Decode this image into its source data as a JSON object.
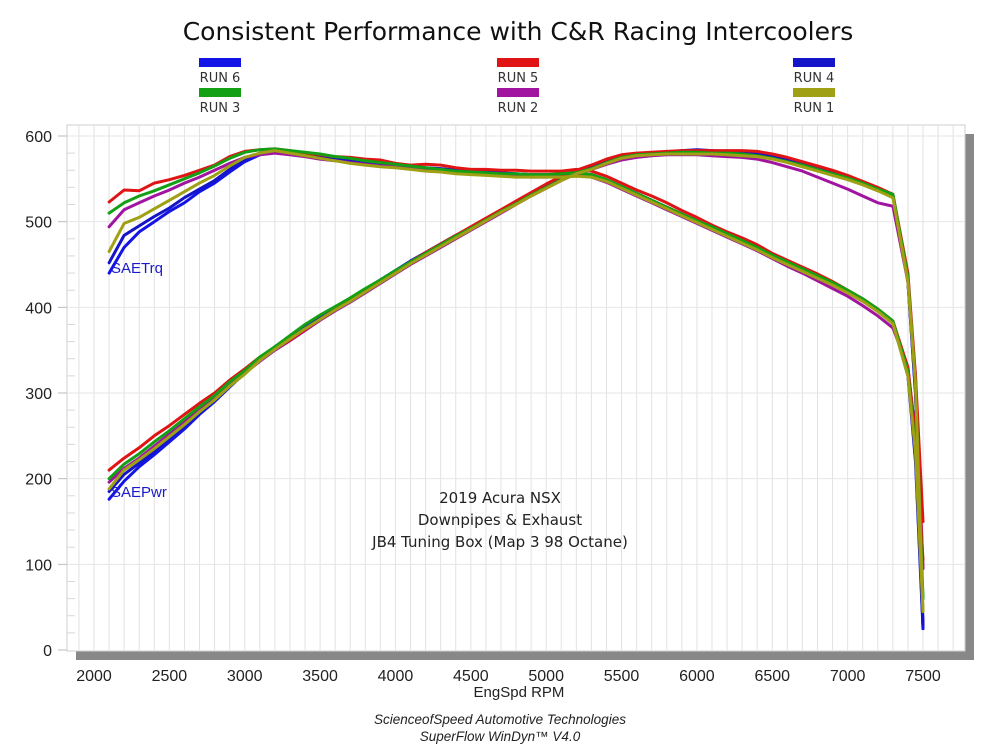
{
  "chart_data": {
    "type": "line",
    "title": "Consistent Performance with C&R Racing Intercoolers",
    "xlabel": "EngSpd RPM",
    "ylabel": "",
    "xlim": [
      1850,
      7800
    ],
    "ylim": [
      0,
      610
    ],
    "x_ticks": [
      2000,
      2500,
      3000,
      3500,
      4000,
      4500,
      5000,
      5500,
      6000,
      6500,
      7000,
      7500
    ],
    "y_ticks": [
      0,
      100,
      200,
      300,
      400,
      500,
      600
    ],
    "grid": true,
    "legend_placement": "top",
    "legend": [
      {
        "name": "RUN 6",
        "color": "#1414e6"
      },
      {
        "name": "RUN 5",
        "color": "#e01414"
      },
      {
        "name": "RUN 4",
        "color": "#1414c8"
      },
      {
        "name": "RUN 3",
        "color": "#14a014"
      },
      {
        "name": "RUN 2",
        "color": "#a014a0"
      },
      {
        "name": "RUN 1",
        "color": "#a0a014"
      }
    ],
    "annotations": [
      "2019 Acura NSX",
      "Downpipes & Exhaust",
      "JB4 Tuning Box (Map 3 98 Octane)"
    ],
    "curve_labels": {
      "torque": "SAETrq",
      "power": "SAEPwr"
    },
    "x": [
      2100,
      2200,
      2300,
      2400,
      2500,
      2600,
      2700,
      2800,
      2900,
      3000,
      3100,
      3200,
      3300,
      3400,
      3500,
      3600,
      3700,
      3800,
      3900,
      4000,
      4100,
      4200,
      4300,
      4400,
      4500,
      4600,
      4700,
      4800,
      4900,
      5000,
      5100,
      5200,
      5300,
      5400,
      5500,
      5600,
      5700,
      5800,
      5900,
      6000,
      6100,
      6200,
      6300,
      6400,
      6500,
      6600,
      6700,
      6800,
      6900,
      7000,
      7100,
      7200,
      7300,
      7400,
      7450,
      7500
    ],
    "series": [
      {
        "name": "RUN 6 SAETrq",
        "run": "RUN 6",
        "measure": "SAETrq",
        "values": [
          440,
          470,
          488,
          500,
          512,
          522,
          535,
          545,
          558,
          570,
          578,
          582,
          580,
          578,
          574,
          572,
          570,
          568,
          566,
          565,
          564,
          562,
          561,
          560,
          558,
          557,
          556,
          555,
          554,
          554,
          554,
          555,
          553,
          548,
          540,
          532,
          524,
          516,
          508,
          500,
          492,
          484,
          476,
          468,
          459,
          451,
          443,
          435,
          427,
          418,
          408,
          396,
          382,
          320,
          220,
          25
        ]
      },
      {
        "name": "RUN 5 SAETrq",
        "run": "RUN 5",
        "measure": "SAETrq",
        "values": [
          523,
          537,
          536,
          545,
          549,
          554,
          560,
          566,
          576,
          582,
          584,
          585,
          583,
          580,
          578,
          576,
          575,
          573,
          572,
          568,
          566,
          567,
          566,
          563,
          561,
          561,
          560,
          560,
          559,
          559,
          559,
          561,
          559,
          553,
          545,
          537,
          530,
          522,
          513,
          505,
          496,
          488,
          481,
          473,
          463,
          455,
          447,
          439,
          430,
          420,
          410,
          398,
          384,
          330,
          250,
          105
        ]
      },
      {
        "name": "RUN 4 SAETrq",
        "run": "RUN 4",
        "measure": "SAETrq",
        "values": [
          452,
          484,
          495,
          506,
          516,
          528,
          538,
          548,
          561,
          573,
          580,
          583,
          581,
          579,
          576,
          574,
          572,
          570,
          568,
          566,
          565,
          563,
          562,
          560,
          559,
          558,
          557,
          556,
          555,
          555,
          555,
          556,
          555,
          549,
          541,
          533,
          525,
          517,
          509,
          501,
          493,
          485,
          477,
          469,
          460,
          452,
          444,
          436,
          428,
          419,
          409,
          397,
          383,
          322,
          225,
          30
        ]
      },
      {
        "name": "RUN 3 SAETrq",
        "run": "RUN 3",
        "measure": "SAETrq",
        "values": [
          510,
          522,
          530,
          536,
          543,
          550,
          557,
          565,
          574,
          581,
          584,
          585,
          583,
          581,
          579,
          576,
          574,
          571,
          569,
          567,
          565,
          563,
          561,
          559,
          558,
          557,
          556,
          556,
          555,
          555,
          556,
          557,
          555,
          549,
          541,
          533,
          525,
          517,
          509,
          501,
          494,
          486,
          478,
          470,
          461,
          453,
          445,
          437,
          429,
          420,
          410,
          398,
          384,
          325,
          235,
          60
        ]
      },
      {
        "name": "RUN 2 SAETrq",
        "run": "RUN 2",
        "measure": "SAETrq",
        "values": [
          494,
          514,
          522,
          530,
          537,
          545,
          552,
          560,
          568,
          575,
          578,
          580,
          578,
          576,
          573,
          571,
          569,
          567,
          565,
          564,
          562,
          560,
          559,
          557,
          556,
          555,
          554,
          553,
          552,
          552,
          553,
          554,
          552,
          546,
          538,
          530,
          522,
          514,
          506,
          498,
          490,
          482,
          474,
          466,
          457,
          448,
          440,
          431,
          422,
          413,
          402,
          390,
          376,
          330,
          250,
          95
        ]
      },
      {
        "name": "RUN 1 SAETrq",
        "run": "RUN 1",
        "measure": "SAETrq",
        "values": [
          465,
          498,
          505,
          515,
          525,
          535,
          545,
          554,
          565,
          575,
          580,
          583,
          580,
          577,
          574,
          571,
          568,
          566,
          564,
          563,
          561,
          559,
          558,
          556,
          555,
          554,
          553,
          552,
          552,
          552,
          552,
          553,
          552,
          547,
          539,
          531,
          523,
          515,
          507,
          499,
          491,
          483,
          475,
          467,
          458,
          450,
          442,
          434,
          426,
          417,
          407,
          395,
          381,
          320,
          230,
          45
        ]
      },
      {
        "name": "RUN 6 SAEPwr",
        "run": "RUN 6",
        "measure": "SAEPwr",
        "values": [
          176,
          197,
          214,
          228,
          243,
          258,
          275,
          290,
          307,
          323,
          339,
          353,
          366,
          378,
          389,
          400,
          410,
          421,
          432,
          443,
          454,
          464,
          474,
          484,
          493,
          503,
          513,
          522,
          532,
          541,
          550,
          558,
          563,
          570,
          576,
          578,
          580,
          581,
          582,
          583,
          582,
          581,
          580,
          578,
          576,
          572,
          567,
          562,
          557,
          552,
          546,
          538,
          530,
          430,
          300,
          25
        ]
      },
      {
        "name": "RUN 5 SAEPwr",
        "run": "RUN 5",
        "measure": "SAEPwr",
        "values": [
          210,
          224,
          236,
          250,
          262,
          275,
          288,
          300,
          315,
          328,
          342,
          352,
          362,
          374,
          386,
          397,
          408,
          420,
          431,
          442,
          453,
          464,
          474,
          484,
          494,
          504,
          514,
          524,
          534,
          544,
          553,
          560,
          566,
          573,
          578,
          580,
          581,
          582,
          583,
          583,
          583,
          583,
          583,
          582,
          579,
          575,
          570,
          565,
          560,
          554,
          547,
          540,
          532,
          440,
          320,
          150
        ]
      },
      {
        "name": "RUN 4 SAEPwr",
        "run": "RUN 4",
        "measure": "SAEPwr",
        "values": [
          185,
          205,
          218,
          232,
          247,
          262,
          277,
          292,
          309,
          325,
          340,
          354,
          366,
          378,
          389,
          400,
          410,
          421,
          432,
          443,
          454,
          464,
          474,
          484,
          493,
          503,
          513,
          522,
          532,
          541,
          550,
          558,
          563,
          570,
          576,
          578,
          580,
          581,
          583,
          584,
          583,
          582,
          581,
          579,
          576,
          572,
          567,
          562,
          557,
          552,
          546,
          538,
          530,
          430,
          300,
          30
        ]
      },
      {
        "name": "RUN 3 SAEPwr",
        "run": "RUN 3",
        "measure": "SAEPwr",
        "values": [
          200,
          217,
          229,
          243,
          256,
          270,
          284,
          297,
          313,
          326,
          342,
          354,
          367,
          380,
          391,
          401,
          411,
          422,
          432,
          443,
          453,
          463,
          473,
          483,
          492,
          502,
          512,
          521,
          531,
          540,
          549,
          557,
          562,
          569,
          575,
          578,
          579,
          580,
          581,
          581,
          580,
          580,
          579,
          577,
          574,
          570,
          566,
          561,
          556,
          551,
          545,
          538,
          532,
          435,
          310,
          60
        ]
      },
      {
        "name": "RUN 2 SAEPwr",
        "run": "RUN 2",
        "measure": "SAEPwr",
        "values": [
          196,
          212,
          224,
          238,
          252,
          266,
          280,
          294,
          309,
          323,
          337,
          350,
          361,
          373,
          385,
          396,
          406,
          417,
          428,
          439,
          450,
          460,
          470,
          480,
          490,
          500,
          510,
          520,
          530,
          539,
          548,
          556,
          561,
          567,
          572,
          575,
          577,
          578,
          578,
          578,
          577,
          576,
          575,
          573,
          569,
          564,
          559,
          552,
          545,
          538,
          530,
          522,
          518,
          430,
          320,
          95
        ]
      },
      {
        "name": "RUN 1 SAEPwr",
        "run": "RUN 1",
        "measure": "SAEPwr",
        "values": [
          188,
          210,
          222,
          235,
          249,
          263,
          278,
          292,
          308,
          322,
          338,
          351,
          363,
          375,
          386,
          397,
          407,
          418,
          429,
          440,
          451,
          461,
          471,
          481,
          491,
          501,
          511,
          520,
          530,
          539,
          548,
          556,
          561,
          568,
          574,
          577,
          578,
          579,
          579,
          579,
          579,
          578,
          577,
          576,
          573,
          569,
          564,
          559,
          554,
          549,
          543,
          536,
          528,
          430,
          310,
          45
        ]
      }
    ]
  },
  "footer": {
    "line1": "ScienceofSpeed Automotive Technologies",
    "line2": "SuperFlow WinDyn™ V4.0"
  }
}
